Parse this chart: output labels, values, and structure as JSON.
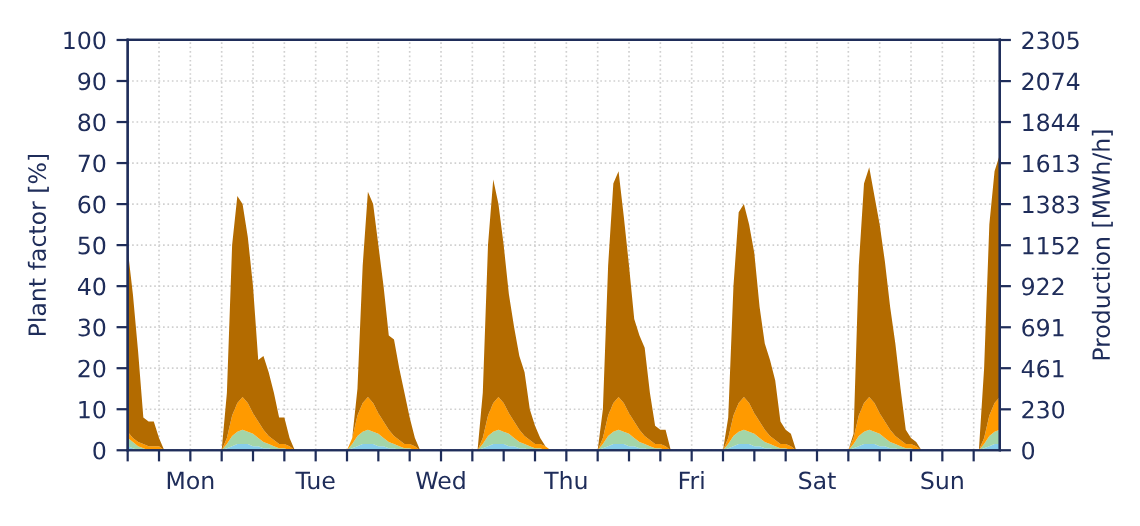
{
  "chart_data": {
    "type": "area",
    "stacked": true,
    "ylabel": "Plant factor [%]",
    "y2label": "Production [MWh/h]",
    "categories": [
      null,
      null,
      null,
      null,
      null,
      null,
      null,
      null,
      null,
      null,
      null,
      null,
      "Mon",
      null,
      null,
      null,
      null,
      null,
      null,
      null,
      null,
      null,
      null,
      null,
      null,
      null,
      null,
      null,
      null,
      null,
      null,
      null,
      null,
      null,
      null,
      null,
      "Tue",
      null,
      null,
      null,
      null,
      null,
      null,
      null,
      null,
      null,
      null,
      null,
      null,
      null,
      null,
      null,
      null,
      null,
      null,
      null,
      null,
      null,
      null,
      null,
      "Wed",
      null,
      null,
      null,
      null,
      null,
      null,
      null,
      null,
      null,
      null,
      null,
      null,
      null,
      null,
      null,
      null,
      null,
      null,
      null,
      null,
      null,
      null,
      null,
      "Thu",
      null,
      null,
      null,
      null,
      null,
      null,
      null,
      null,
      null,
      null,
      null,
      null,
      null,
      null,
      null,
      null,
      null,
      null,
      null,
      null,
      null,
      null,
      null,
      "Fri",
      null,
      null,
      null,
      null,
      null,
      null,
      null,
      null,
      null,
      null,
      null,
      null,
      null,
      null,
      null,
      null,
      null,
      null,
      null,
      null,
      null,
      null,
      null,
      "Sat",
      null,
      null,
      null,
      null,
      null,
      null,
      null,
      null,
      null,
      null,
      null,
      null,
      null,
      null,
      null,
      null,
      null,
      null,
      null,
      null,
      null,
      null,
      null,
      "Sun",
      null,
      null,
      null,
      null,
      null,
      null,
      null,
      null,
      null,
      null,
      null
    ],
    "series": [
      {
        "color": "#87cdea",
        "values": [
          1,
          0.5,
          0,
          0,
          0,
          0,
          0,
          0,
          0,
          0,
          0,
          0,
          0,
          0,
          0,
          0,
          0,
          0,
          0,
          0.5,
          1,
          1.5,
          1.5,
          1.5,
          1,
          1,
          0.5,
          0.5,
          0,
          0,
          0,
          0,
          0,
          0,
          0,
          0,
          0,
          0,
          0,
          0,
          0,
          0,
          0,
          0.5,
          1,
          1.5,
          1.5,
          1.5,
          1,
          1,
          0.5,
          0.5,
          0,
          0,
          0,
          0,
          0,
          0,
          0,
          0,
          0,
          0,
          0,
          0,
          0,
          0,
          0,
          0,
          0.5,
          1,
          1.5,
          1.5,
          1.5,
          1,
          1,
          0.5,
          0.5,
          0,
          0,
          0,
          0,
          0,
          0,
          0,
          0,
          0,
          0,
          0,
          0,
          0,
          0,
          0.5,
          1,
          1.5,
          1.5,
          1.5,
          1,
          1,
          0.5,
          0.5,
          0,
          0,
          0,
          0,
          0,
          0,
          0,
          0,
          0,
          0,
          0,
          0,
          0,
          0,
          0,
          0.5,
          1,
          1.5,
          1.5,
          1.5,
          1,
          1,
          0.5,
          0.5,
          0,
          0,
          0,
          0,
          0,
          0,
          0,
          0,
          0,
          0,
          0,
          0,
          0,
          0,
          0,
          0.5,
          1,
          1.5,
          1.5,
          1.5,
          1,
          1,
          0.5,
          0.5,
          0,
          0,
          0,
          0,
          0,
          0,
          0,
          0,
          0,
          0,
          0,
          0,
          0,
          0,
          0,
          0,
          0.5,
          1,
          1.5,
          1.5
        ]
      },
      {
        "color": "#a3d5a8",
        "values": [
          2,
          1.5,
          1,
          0.5,
          0,
          0,
          0,
          0,
          0,
          0,
          0,
          0,
          0,
          0,
          0,
          0,
          0,
          0,
          0,
          1,
          2.5,
          3,
          3.5,
          3,
          3,
          2,
          1.5,
          1,
          1,
          0.5,
          0.5,
          0,
          0,
          0,
          0,
          0,
          0,
          0,
          0,
          0,
          0,
          0,
          0,
          1,
          2.5,
          3,
          3.5,
          3,
          3,
          2,
          1.5,
          1,
          1,
          0.5,
          0.5,
          0,
          0,
          0,
          0,
          0,
          0,
          0,
          0,
          0,
          0,
          0,
          0,
          0,
          1,
          2.5,
          3,
          3.5,
          3,
          3,
          2,
          1.5,
          1,
          1,
          0.5,
          0.5,
          0,
          0,
          0,
          0,
          0,
          0,
          0,
          0,
          0,
          0,
          0,
          1,
          2.5,
          3,
          3.5,
          3,
          3,
          2,
          1.5,
          1,
          1,
          0.5,
          0.5,
          0,
          0,
          0,
          0,
          0,
          0,
          0,
          0,
          0,
          0,
          0,
          0,
          1,
          2.5,
          3,
          3.5,
          3,
          3,
          2,
          1.5,
          1,
          1,
          0.5,
          0.5,
          0,
          0,
          0,
          0,
          0,
          0,
          0,
          0,
          0,
          0,
          0,
          0,
          1,
          2.5,
          3,
          3.5,
          3,
          3,
          2,
          1.5,
          1,
          1,
          0.5,
          0.5,
          0,
          0,
          0,
          0,
          0,
          0,
          0,
          0,
          0,
          0,
          0,
          0,
          0,
          1,
          2.5,
          3,
          3.5
        ]
      },
      {
        "color": "#ff9a00",
        "values": [
          1.5,
          1,
          1,
          1,
          1,
          1,
          1,
          0,
          0,
          0,
          0,
          0,
          0,
          0,
          0,
          0,
          0,
          0,
          0,
          1.5,
          5,
          7,
          8,
          7,
          5,
          4,
          3,
          2,
          1.5,
          1,
          1,
          1,
          0,
          0,
          0,
          0,
          0,
          0,
          0,
          0,
          0,
          0,
          0,
          1.5,
          5,
          7,
          8,
          7,
          5,
          4,
          3,
          2,
          1.5,
          1,
          1,
          1,
          0,
          0,
          0,
          0,
          0,
          0,
          0,
          0,
          0,
          0,
          0,
          0,
          1.5,
          5,
          7,
          8,
          7,
          5,
          4,
          3,
          2,
          1.5,
          1,
          1,
          1,
          0,
          0,
          0,
          0,
          0,
          0,
          0,
          0,
          0,
          0,
          1.5,
          5,
          7,
          8,
          7,
          5,
          4,
          3,
          2,
          1.5,
          1,
          1,
          1,
          0,
          0,
          0,
          0,
          0,
          0,
          0,
          0,
          0,
          0,
          0,
          1.5,
          5,
          7,
          8,
          7,
          5,
          4,
          3,
          2,
          1.5,
          1,
          1,
          1,
          0,
          0,
          0,
          0,
          0,
          0,
          0,
          0,
          0,
          0,
          0,
          1.5,
          5,
          7,
          8,
          7,
          5,
          4,
          3,
          2,
          1.5,
          1,
          1,
          1,
          0,
          0,
          0,
          0,
          0,
          0,
          0,
          0,
          0,
          0,
          0,
          0,
          1.5,
          5,
          7,
          8
        ]
      },
      {
        "color": "#b36b00",
        "values": [
          44.5,
          35,
          22,
          6.5,
          6,
          6,
          2,
          0,
          0,
          0,
          0,
          0,
          0,
          0,
          0,
          0,
          0,
          0,
          0,
          11,
          41.5,
          50.5,
          47,
          40.5,
          31,
          15,
          18,
          15.5,
          11.5,
          6.5,
          6.5,
          2,
          0,
          0,
          0,
          0,
          0,
          0,
          0,
          0,
          0,
          0,
          0,
          0,
          6.5,
          33.5,
          50,
          48.5,
          41,
          33,
          23,
          23.5,
          17.5,
          12.5,
          6.5,
          2,
          0,
          0,
          0,
          0,
          0,
          0,
          0,
          0,
          0,
          0,
          0,
          0,
          11,
          41.5,
          54.5,
          47,
          38.5,
          29,
          23,
          18,
          15.5,
          7.5,
          4.5,
          1.5,
          0,
          0,
          0,
          0,
          0,
          0,
          0,
          0,
          0,
          0,
          0,
          7,
          36.5,
          53.5,
          55,
          45.5,
          36,
          25,
          23,
          21.5,
          11.5,
          4.5,
          3.5,
          4,
          0,
          0,
          0,
          0,
          0,
          0,
          0,
          0,
          0,
          0,
          0,
          5,
          31.5,
          46.5,
          47,
          43.5,
          39,
          28,
          21,
          18.5,
          14.5,
          5.5,
          3.5,
          3,
          0,
          0,
          0,
          0,
          0,
          0,
          0,
          0,
          0,
          0,
          0,
          1,
          36.5,
          53.5,
          56,
          50.5,
          46,
          39,
          30,
          22.5,
          12.5,
          3.5,
          1.5,
          1,
          0,
          0,
          0,
          0,
          0,
          0,
          0,
          0,
          0,
          0,
          0,
          0,
          17,
          46.5,
          56.5,
          59
        ]
      }
    ],
    "ylim": [
      0,
      100
    ],
    "yticks": [
      0,
      10,
      20,
      30,
      40,
      50,
      60,
      70,
      80,
      90,
      100
    ],
    "y2lim": [
      0,
      2305
    ],
    "y2ticks": [
      0,
      230,
      461,
      691,
      922,
      1152,
      1383,
      1613,
      1844,
      2074,
      2305
    ],
    "grid": true,
    "line_style": "dotted"
  }
}
